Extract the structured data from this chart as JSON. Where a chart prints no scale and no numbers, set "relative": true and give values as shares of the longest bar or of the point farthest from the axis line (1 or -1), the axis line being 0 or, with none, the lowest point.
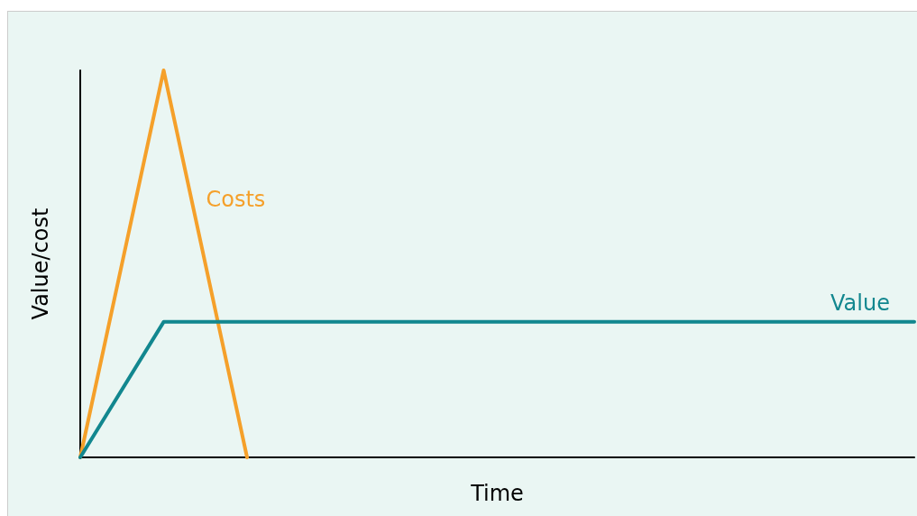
{
  "chart_data": {
    "type": "line",
    "relative": true,
    "xlabel": "Time",
    "ylabel": "Value/cost",
    "legend": false,
    "grid": false,
    "marker": "none",
    "line_style": "solid",
    "categories": [
      null,
      null,
      null,
      null,
      null,
      null,
      null,
      null,
      null,
      null,
      null
    ],
    "series": [
      {
        "name": "Costs",
        "color": "#f5a02a",
        "values": [
          0,
          1,
          0,
          null,
          null,
          null,
          null,
          null,
          null,
          null,
          null
        ]
      },
      {
        "name": "Value",
        "color": "#12878f",
        "values": [
          0,
          0.35,
          0.35,
          0.35,
          0.35,
          0.35,
          0.35,
          0.35,
          0.35,
          0.35,
          0.35
        ]
      }
    ]
  }
}
